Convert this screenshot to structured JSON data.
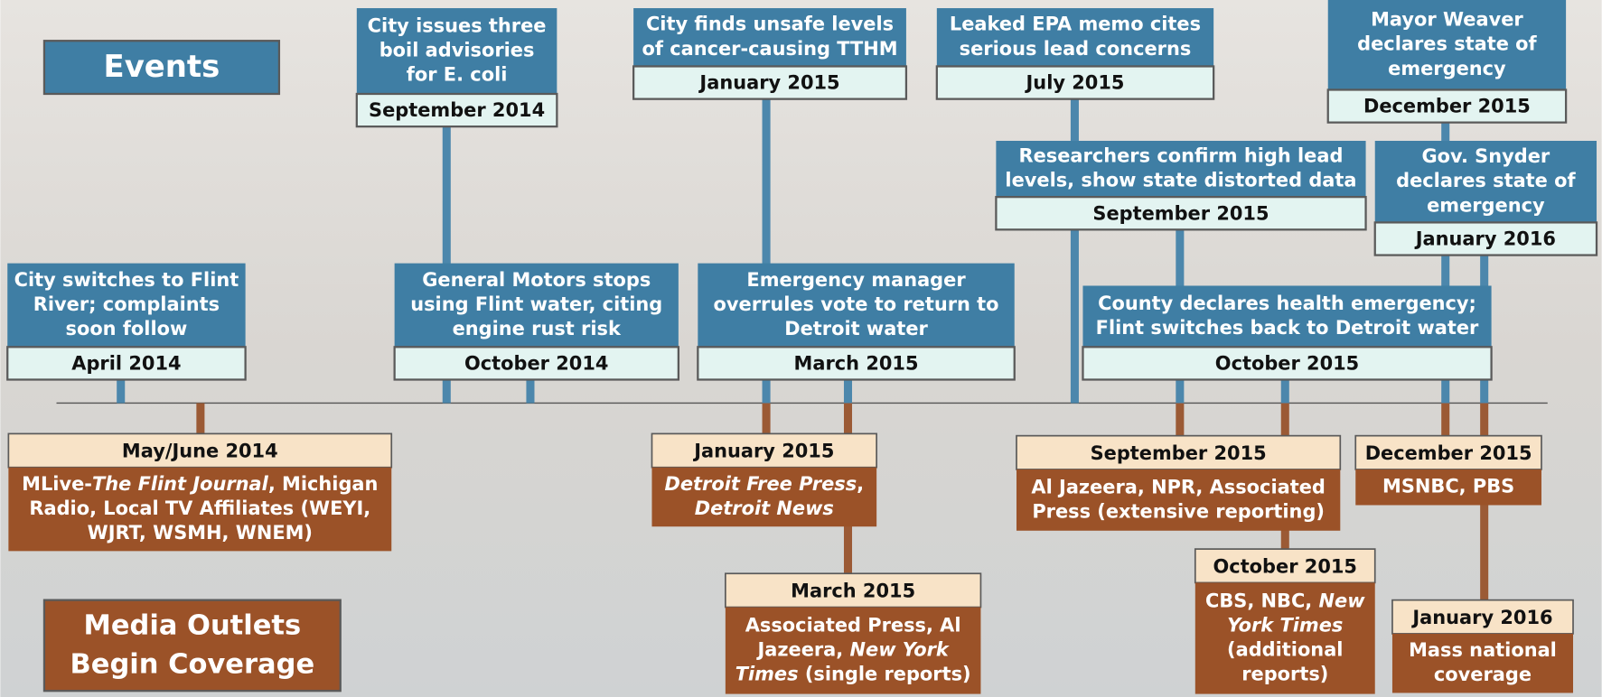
{
  "legend": {
    "events": "Events",
    "media": [
      "Media Outlets",
      "Begin Coverage"
    ]
  },
  "events": [
    {
      "lines": [
        "City issues three",
        "boil advisories",
        "for E. coli"
      ],
      "date": "September 2014"
    },
    {
      "lines": [
        "City finds unsafe levels",
        "of cancer-causing TTHM"
      ],
      "date": "January 2015"
    },
    {
      "lines": [
        "Leaked EPA memo cites",
        "serious lead concerns"
      ],
      "date": "July 2015"
    },
    {
      "lines": [
        "Mayor Weaver",
        "declares state of",
        "emergency"
      ],
      "date": "December 2015"
    },
    {
      "lines": [
        "Researchers confirm high lead",
        "levels, show state distorted data"
      ],
      "date": "September 2015"
    },
    {
      "lines": [
        "Gov. Snyder",
        "declares state of",
        "emergency"
      ],
      "date": "January 2016"
    },
    {
      "lines": [
        "City switches to Flint",
        "River; complaints",
        "soon follow"
      ],
      "date": "April 2014"
    },
    {
      "lines": [
        "General Motors stops",
        "using Flint water, citing",
        "engine rust risk"
      ],
      "date": "October 2014"
    },
    {
      "lines": [
        "Emergency manager",
        "overrules vote to return to",
        "Detroit water"
      ],
      "date": "March 2015"
    },
    {
      "lines": [
        "County declares health emergency;",
        "Flint switches back to Detroit water"
      ],
      "date": "October 2015"
    }
  ],
  "media": [
    {
      "date": "May/June 2014",
      "lines": [
        [
          {
            "text": "MLive-"
          },
          {
            "text": "The Flint Journal",
            "italic": true
          },
          {
            "text": ", Michigan"
          }
        ],
        [
          {
            "text": "Radio, Local TV Affiliates (WEYI,"
          }
        ],
        [
          {
            "text": "WJRT, WSMH, WNEM)"
          }
        ]
      ]
    },
    {
      "date": "January 2015",
      "lines": [
        [
          {
            "text": "Detroit Free Press",
            "italic": true
          },
          {
            "text": ","
          }
        ],
        [
          {
            "text": "Detroit News",
            "italic": true
          }
        ]
      ]
    },
    {
      "date": "March 2015",
      "lines": [
        [
          {
            "text": "Associated Press, Al"
          }
        ],
        [
          {
            "text": "Jazeera, "
          },
          {
            "text": "New York",
            "italic": true
          }
        ],
        [
          {
            "text": "Times",
            "italic": true
          },
          {
            "text": " (single reports)"
          }
        ]
      ]
    },
    {
      "date": "September 2015",
      "lines": [
        [
          {
            "text": "Al Jazeera, NPR, Associated"
          }
        ],
        [
          {
            "text": "Press (extensive reporting)"
          }
        ]
      ]
    },
    {
      "date": "October 2015",
      "lines": [
        [
          {
            "text": "CBS, NBC, "
          },
          {
            "text": "New",
            "italic": true
          }
        ],
        [
          {
            "text": "York Times",
            "italic": true
          }
        ],
        [
          {
            "text": "(additional"
          }
        ],
        [
          {
            "text": "reports)"
          }
        ]
      ]
    },
    {
      "date": "December 2015",
      "lines": [
        [
          {
            "text": "MSNBC, PBS"
          }
        ]
      ]
    },
    {
      "date": "January 2016",
      "lines": [
        [
          {
            "text": "Mass national"
          }
        ],
        [
          {
            "text": "coverage"
          }
        ]
      ]
    }
  ]
}
